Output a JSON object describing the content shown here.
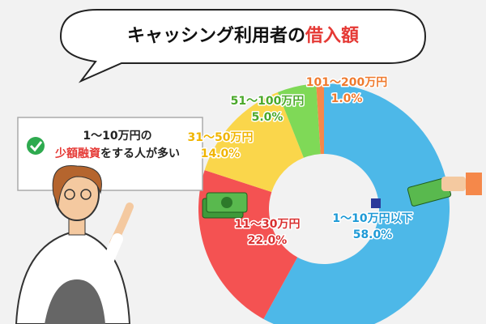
{
  "chart_data": {
    "type": "donut",
    "title_parts": [
      "キャッシング利用者の",
      "借入額"
    ],
    "title_colors": [
      "#111111",
      "#e53935"
    ],
    "annotation": {
      "line1": "1〜10万円の",
      "line2_parts": [
        "少額融資",
        "をする人が多い"
      ]
    },
    "categories": [
      "1〜10万円以下",
      "11〜30万円",
      "31〜50万円",
      "51〜100万円",
      "101〜200万円"
    ],
    "values": [
      58,
      22,
      14,
      5,
      1
    ],
    "value_labels": [
      "58.0%",
      "22.0%",
      "14.0%",
      "5.0%",
      "1.0%"
    ],
    "colors": [
      "#4db8e8",
      "#f45252",
      "#fad64b",
      "#7fd957",
      "#f5884a"
    ],
    "label_colors": [
      "#1e9ad6",
      "#d93030",
      "#f0b400",
      "#4aa82a",
      "#ef7a2e"
    ]
  }
}
